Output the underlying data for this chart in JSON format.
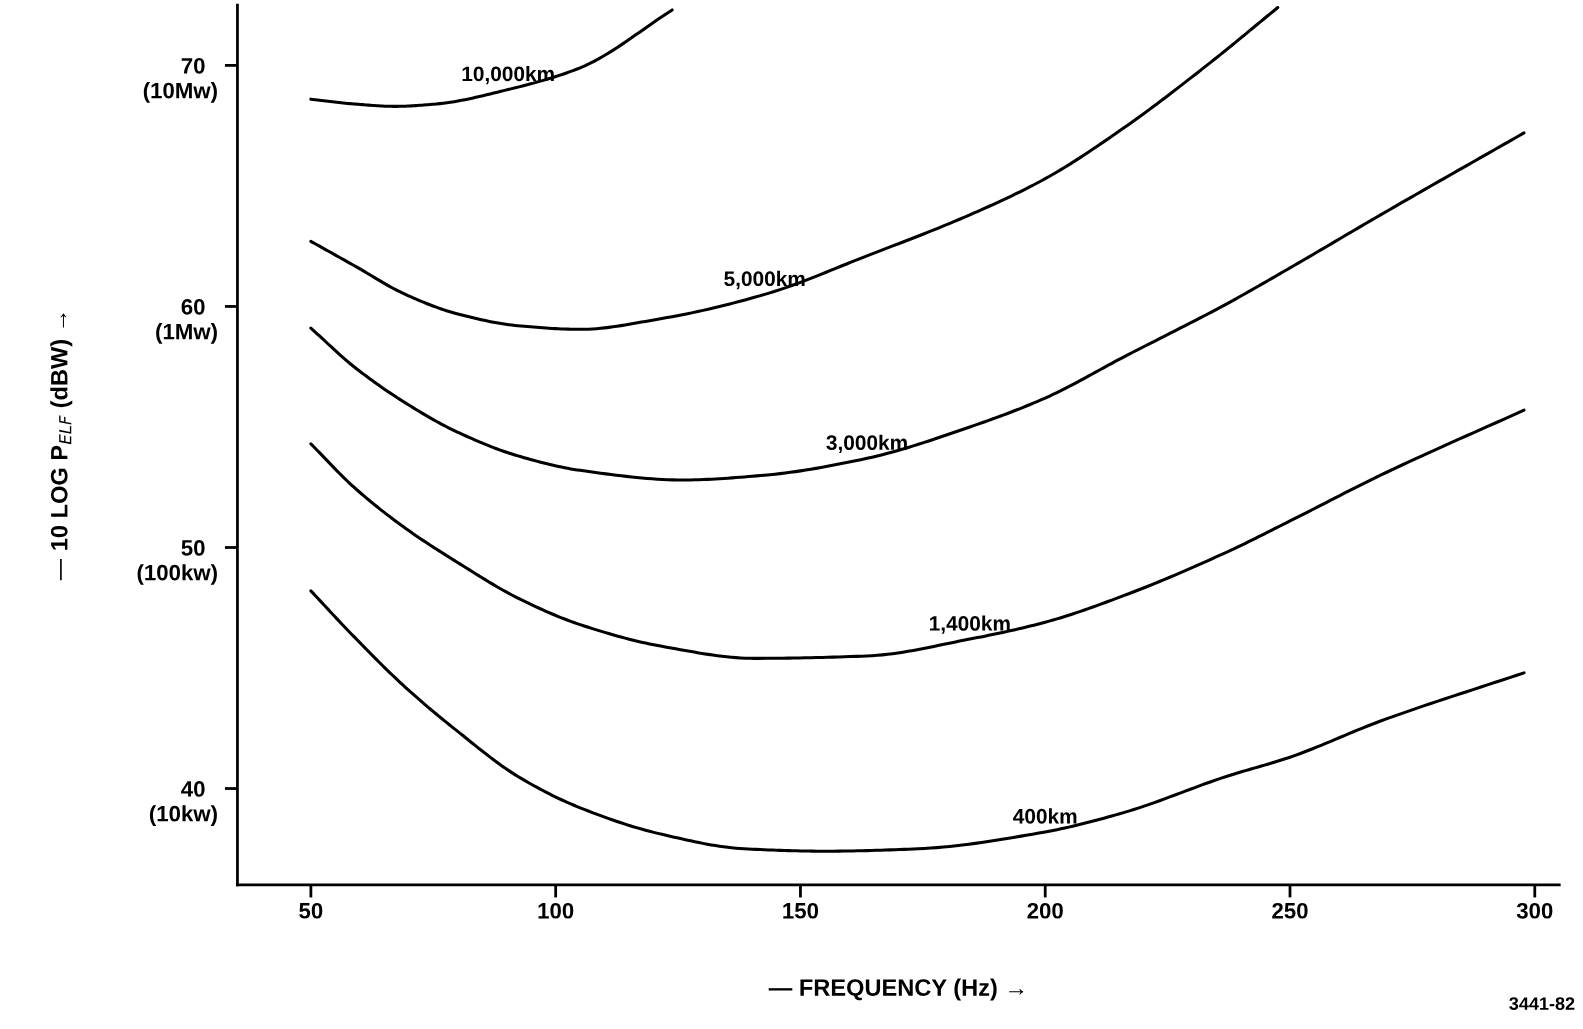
{
  "chart_data": {
    "type": "line",
    "xlabel": "— FREQUENCY (Hz) →",
    "ylabel": "— 10 LOG P$_{ELF}$ (dBW) →",
    "xlim": [
      35,
      305
    ],
    "ylim": [
      36,
      72.5
    ],
    "xticks": [
      50,
      100,
      150,
      200,
      250,
      300
    ],
    "yticks": [
      40,
      50,
      60,
      70
    ],
    "grid": false,
    "annotations": [
      "3441-82",
      "(10kw)",
      "(100kw)",
      "(1Mw)",
      "(10Mw)"
    ],
    "series": [
      {
        "name": "10,000km",
        "color": "#000000",
        "x": [
          50,
          58.8,
          67.2,
          75.6,
          90.3,
          105,
          123.8
        ],
        "values": [
          68.6,
          68.4,
          68.3,
          68.4,
          69.0,
          69.9,
          72.3
        ]
      },
      {
        "name": "5,000km",
        "color": "#000000",
        "x": [
          50,
          58.8,
          69.3,
          79.8,
          92.3,
          105,
          121.7,
          142.7,
          163.6,
          184.6,
          200,
          216,
          233,
          247.5
        ],
        "values": [
          62.7,
          61.7,
          60.5,
          59.7,
          59.2,
          59.05,
          59.5,
          60.5,
          62.1,
          63.8,
          65.3,
          67.4,
          70.0,
          72.4
        ]
      },
      {
        "name": "3,000km",
        "color": "#000000",
        "x": [
          50,
          58.8,
          69.3,
          79.8,
          92.3,
          105,
          126,
          142.7,
          163.6,
          184.6,
          200,
          216,
          237,
          250,
          268.5,
          297.8
        ],
        "values": [
          59.1,
          57.5,
          56.0,
          54.8,
          53.8,
          53.2,
          52.8,
          53.0,
          53.7,
          55.0,
          56.2,
          57.9,
          60.1,
          61.6,
          63.8,
          67.2
        ]
      },
      {
        "name": "1,400km",
        "color": "#000000",
        "x": [
          50,
          58.8,
          69.3,
          79.8,
          92.3,
          105,
          121.7,
          140.6,
          163.6,
          184.6,
          200,
          216,
          237,
          250,
          268.5,
          297.8
        ],
        "values": [
          54.3,
          52.5,
          50.8,
          49.4,
          47.9,
          46.8,
          45.9,
          45.4,
          45.5,
          46.2,
          46.9,
          48.0,
          49.8,
          51.1,
          53.0,
          55.7
        ]
      },
      {
        "name": "400km",
        "color": "#000000",
        "x": [
          50,
          58.8,
          69.3,
          79.8,
          92.3,
          105,
          121.7,
          138.5,
          155,
          174,
          200,
          216,
          237,
          250,
          268.5,
          297.8
        ],
        "values": [
          48.2,
          46.3,
          44.2,
          42.4,
          40.5,
          39.2,
          38.1,
          37.5,
          37.4,
          37.5,
          38.2,
          39.0,
          40.5,
          41.3,
          42.8,
          44.8
        ]
      }
    ]
  }
}
